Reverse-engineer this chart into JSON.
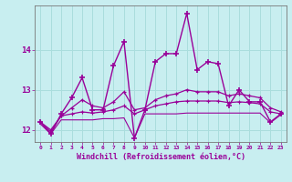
{
  "xlabel": "Windchill (Refroidissement éolien,°C)",
  "background_color": "#c8eef0",
  "grid_color": "#aadddd",
  "line_color": "#990099",
  "x": [
    0,
    1,
    2,
    3,
    4,
    5,
    6,
    7,
    8,
    9,
    10,
    11,
    12,
    13,
    14,
    15,
    16,
    17,
    18,
    19,
    20,
    21,
    22,
    23
  ],
  "series": {
    "main": [
      12.2,
      11.9,
      12.4,
      12.8,
      13.3,
      12.5,
      12.5,
      13.6,
      14.2,
      11.8,
      12.5,
      13.7,
      13.9,
      13.9,
      14.9,
      13.5,
      13.7,
      13.65,
      12.6,
      13.0,
      12.7,
      12.7,
      12.2,
      12.4
    ],
    "line_smooth1": [
      12.2,
      11.95,
      12.35,
      12.55,
      12.75,
      12.6,
      12.55,
      12.7,
      12.95,
      12.5,
      12.55,
      12.75,
      12.85,
      12.9,
      13.0,
      12.95,
      12.95,
      12.95,
      12.85,
      12.9,
      12.85,
      12.8,
      12.55,
      12.45
    ],
    "line_smooth2": [
      12.2,
      12.0,
      12.35,
      12.4,
      12.45,
      12.42,
      12.45,
      12.5,
      12.6,
      12.4,
      12.5,
      12.6,
      12.65,
      12.7,
      12.72,
      12.72,
      12.72,
      12.72,
      12.68,
      12.7,
      12.68,
      12.65,
      12.45,
      12.4
    ],
    "line_flat": [
      12.15,
      11.9,
      12.25,
      12.25,
      12.25,
      12.25,
      12.28,
      12.28,
      12.3,
      11.8,
      12.4,
      12.4,
      12.4,
      12.4,
      12.42,
      12.42,
      12.42,
      12.42,
      12.42,
      12.42,
      12.42,
      12.42,
      12.18,
      12.38
    ]
  },
  "ylim": [
    11.7,
    15.1
  ],
  "yticks": [
    12,
    13,
    14
  ],
  "xticks": [
    0,
    1,
    2,
    3,
    4,
    5,
    6,
    7,
    8,
    9,
    10,
    11,
    12,
    13,
    14,
    15,
    16,
    17,
    18,
    19,
    20,
    21,
    22,
    23
  ]
}
